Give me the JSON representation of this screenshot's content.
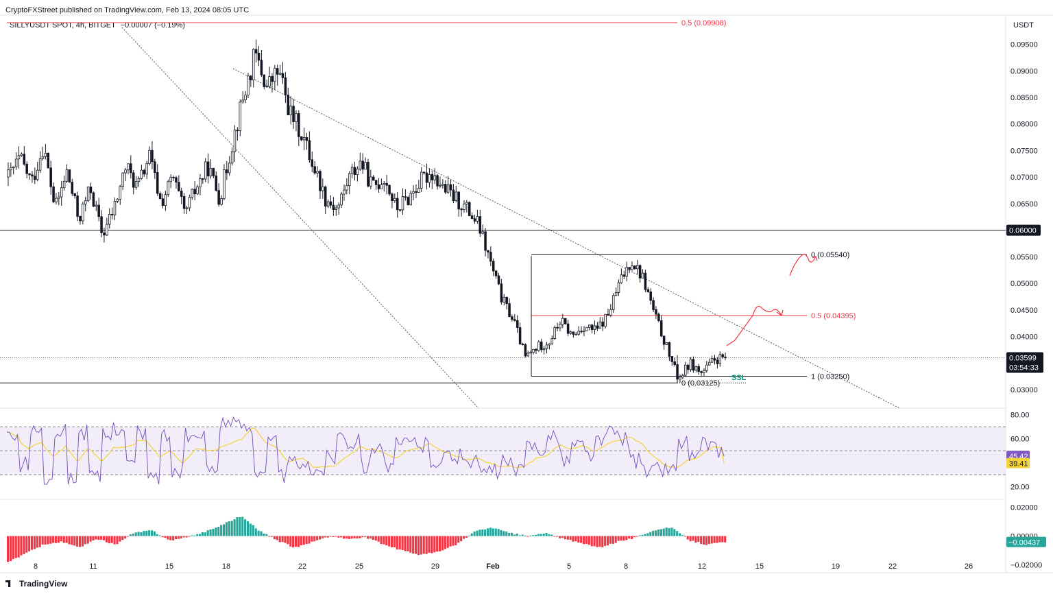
{
  "header": {
    "published_line": "CryptoFXStreet published on TradingView.com, Feb 13, 2024 08:05 UTC",
    "symbol_line": "SILLYUSDT SPOT, 4h, BITGET",
    "change": "−0.00007 (−0.19%)"
  },
  "currency": "USDT",
  "footer": {
    "brand": "TradingView",
    "logo_icon": "tradingview-logo-icon"
  },
  "colors": {
    "up": "#ffffff",
    "down": "#131722",
    "red": "#f23645",
    "teal": "#089981",
    "rsi": "#7e57c2",
    "rsi_ma": "#f5d33b",
    "histogram_up": "#26a69a",
    "histogram_down": "#f23645"
  },
  "chart_data": {
    "type": "candlestick",
    "timeframe": "4h",
    "x_ticks": [
      "8",
      "11",
      "15",
      "18",
      "22",
      "25",
      "29",
      "Feb",
      "5",
      "8",
      "12",
      "15",
      "19",
      "22",
      "26"
    ],
    "price_ticks": [
      "0.09500",
      "0.09000",
      "0.08500",
      "0.08000",
      "0.07500",
      "0.07000",
      "0.06500",
      "0.06000",
      "0.05500",
      "0.05000",
      "0.04500",
      "0.04000",
      "0.03599",
      "0.03000"
    ],
    "price_range": [
      0.0265,
      0.1005
    ],
    "close_path": [
      0.07,
      0.0735,
      0.069,
      0.076,
      0.064,
      0.071,
      0.062,
      0.068,
      0.059,
      0.064,
      0.072,
      0.068,
      0.074,
      0.065,
      0.07,
      0.063,
      0.068,
      0.072,
      0.066,
      0.076,
      0.085,
      0.093,
      0.087,
      0.09,
      0.082,
      0.078,
      0.072,
      0.066,
      0.064,
      0.07,
      0.073,
      0.068,
      0.07,
      0.064,
      0.066,
      0.069,
      0.071,
      0.068,
      0.066,
      0.064,
      0.061,
      0.054,
      0.047,
      0.043,
      0.036,
      0.038,
      0.039,
      0.043,
      0.04,
      0.042,
      0.041,
      0.044,
      0.05,
      0.0545,
      0.051,
      0.044,
      0.038,
      0.032,
      0.035,
      0.033,
      0.0355,
      0.036
    ],
    "levels": [
      {
        "label": "0.5 (0.09908)",
        "price": 0.09908,
        "color": "red"
      },
      {
        "label": "0 (0.05540)",
        "price": 0.0554,
        "color": "black"
      },
      {
        "label": "0.5 (0.04395)",
        "price": 0.04395,
        "color": "red"
      },
      {
        "label": "1 (0.03250)",
        "price": 0.0325,
        "color": "black"
      },
      {
        "label": "0 (0.03125)",
        "price": 0.03125,
        "color": "black"
      }
    ],
    "horizontal_lines": [
      0.06,
      0.03125
    ],
    "current_price": "0.03599",
    "countdown": "03:54:33",
    "annotation": "SSL",
    "rsi": {
      "ticks": [
        "80.00",
        "60.00",
        "20.00"
      ],
      "value": "45.42",
      "ma_value": "39.41",
      "range": [
        10,
        85
      ]
    },
    "macd": {
      "ticks": [
        "0.02000",
        "0.00000",
        "−0.02000"
      ],
      "value": "−0.00437",
      "range": [
        -0.025,
        0.025
      ]
    }
  }
}
